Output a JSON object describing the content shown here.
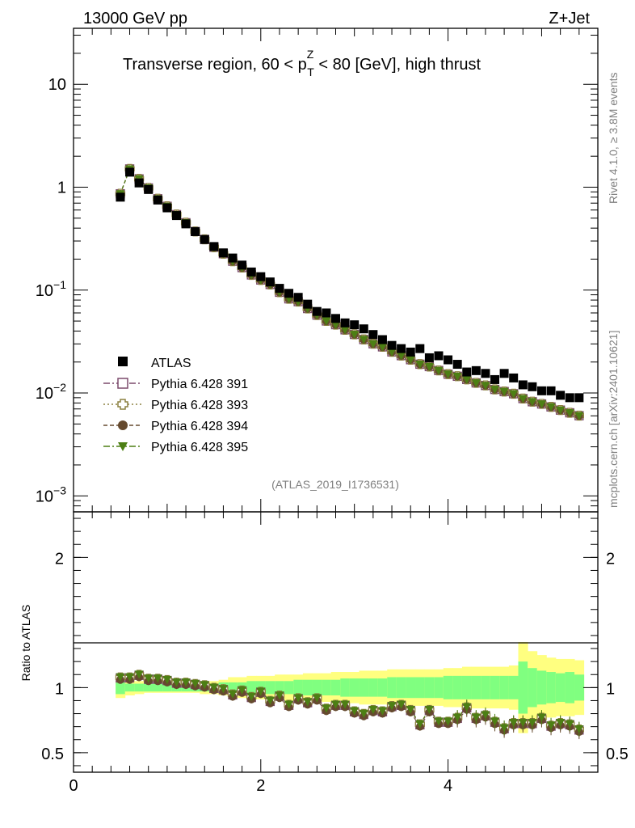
{
  "header": {
    "energy": "13000 GeV pp",
    "process": "Z+Jet",
    "title": "Transverse region, 60 < p",
    "title_sup": "Z",
    "title_sub": "T",
    "title_rest": " < 80 [GeV], high thrust",
    "watermark": "(ATLAS_2019_I1736531)",
    "rivet": "Rivet 4.1.0, ≥ 3.8M events",
    "source": "mcplots.cern.ch [arXiv:2401.10621]"
  },
  "legend": [
    {
      "label": "ATLAS",
      "style": "data"
    },
    {
      "label": "Pythia 6.428 391",
      "style": "open-square",
      "color": "#7b4a6b"
    },
    {
      "label": "Pythia 6.428 393",
      "style": "open-cross",
      "color": "#8c8040"
    },
    {
      "label": "Pythia 6.428 394",
      "style": "circle",
      "color": "#654a2e"
    },
    {
      "label": "Pythia 6.428 395",
      "style": "triangle",
      "color": "#4d7f14"
    }
  ],
  "chart_data": [
    {
      "type": "scatter",
      "panel": "main",
      "yscale": "log",
      "xlim": [
        0,
        5.6
      ],
      "ylim": [
        0.0007,
        35
      ],
      "y_ticks": [
        {
          "v": 0.001,
          "base": "10",
          "exp": "−3"
        },
        {
          "v": 0.01,
          "base": "10",
          "exp": "−2"
        },
        {
          "v": 0.1,
          "base": "10",
          "exp": "−1"
        },
        {
          "v": 1,
          "base": "1",
          "exp": ""
        },
        {
          "v": 10,
          "base": "10",
          "exp": ""
        }
      ],
      "x": [
        0.5,
        0.6,
        0.7,
        0.8,
        0.9,
        1.0,
        1.1,
        1.2,
        1.3,
        1.4,
        1.5,
        1.6,
        1.7,
        1.8,
        1.9,
        2.0,
        2.1,
        2.2,
        2.3,
        2.4,
        2.5,
        2.6,
        2.7,
        2.8,
        2.9,
        3.0,
        3.1,
        3.2,
        3.3,
        3.4,
        3.5,
        3.6,
        3.7,
        3.8,
        3.9,
        4.0,
        4.1,
        4.2,
        4.3,
        4.4,
        4.5,
        4.6,
        4.7,
        4.8,
        4.9,
        5.0,
        5.1,
        5.2,
        5.3,
        5.4
      ],
      "series": [
        {
          "name": "ATLAS",
          "values": [
            0.8,
            1.4,
            1.1,
            0.95,
            0.75,
            0.63,
            0.53,
            0.44,
            0.37,
            0.31,
            0.265,
            0.23,
            0.205,
            0.175,
            0.15,
            0.135,
            0.12,
            0.104,
            0.093,
            0.085,
            0.073,
            0.062,
            0.06,
            0.053,
            0.048,
            0.046,
            0.042,
            0.037,
            0.033,
            0.029,
            0.027,
            0.025,
            0.027,
            0.022,
            0.023,
            0.021,
            0.019,
            0.016,
            0.0165,
            0.0155,
            0.0135,
            0.0155,
            0.014,
            0.012,
            0.0115,
            0.0105,
            0.0105,
            0.0095,
            0.009,
            0.009
          ]
        },
        {
          "name": "Pythia 6.428 391",
          "values": [
            0.86,
            1.5,
            1.2,
            0.98,
            0.77,
            0.65,
            0.54,
            0.45,
            0.37,
            0.31,
            0.26,
            0.225,
            0.19,
            0.165,
            0.14,
            0.125,
            0.113,
            0.095,
            0.082,
            0.077,
            0.066,
            0.057,
            0.05,
            0.046,
            0.041,
            0.037,
            0.033,
            0.03,
            0.028,
            0.025,
            0.023,
            0.021,
            0.019,
            0.018,
            0.0165,
            0.0152,
            0.0145,
            0.0135,
            0.0125,
            0.0118,
            0.0108,
            0.0103,
            0.0098,
            0.0088,
            0.0082,
            0.0078,
            0.0073,
            0.0068,
            0.0064,
            0.006
          ]
        },
        {
          "name": "Pythia 6.428 393",
          "values": [
            0.86,
            1.5,
            1.2,
            0.98,
            0.77,
            0.65,
            0.54,
            0.45,
            0.37,
            0.31,
            0.26,
            0.225,
            0.19,
            0.165,
            0.14,
            0.125,
            0.113,
            0.095,
            0.082,
            0.077,
            0.066,
            0.057,
            0.05,
            0.046,
            0.041,
            0.037,
            0.033,
            0.03,
            0.028,
            0.025,
            0.023,
            0.021,
            0.019,
            0.018,
            0.0165,
            0.0152,
            0.0145,
            0.0135,
            0.0125,
            0.0118,
            0.0108,
            0.0103,
            0.0098,
            0.0088,
            0.0082,
            0.0078,
            0.0073,
            0.0068,
            0.0064,
            0.006
          ]
        },
        {
          "name": "Pythia 6.428 394",
          "values": [
            0.86,
            1.5,
            1.2,
            0.98,
            0.77,
            0.65,
            0.54,
            0.45,
            0.37,
            0.31,
            0.26,
            0.225,
            0.19,
            0.165,
            0.14,
            0.125,
            0.113,
            0.095,
            0.082,
            0.077,
            0.066,
            0.057,
            0.05,
            0.046,
            0.041,
            0.037,
            0.033,
            0.03,
            0.028,
            0.025,
            0.023,
            0.021,
            0.019,
            0.018,
            0.0165,
            0.0152,
            0.0145,
            0.0135,
            0.0125,
            0.0118,
            0.0108,
            0.0103,
            0.0098,
            0.0088,
            0.0082,
            0.0078,
            0.0073,
            0.0068,
            0.0064,
            0.006
          ]
        },
        {
          "name": "Pythia 6.428 395",
          "values": [
            0.86,
            1.5,
            1.2,
            0.98,
            0.77,
            0.65,
            0.54,
            0.45,
            0.37,
            0.31,
            0.26,
            0.225,
            0.19,
            0.165,
            0.14,
            0.125,
            0.113,
            0.095,
            0.082,
            0.077,
            0.066,
            0.057,
            0.05,
            0.046,
            0.041,
            0.037,
            0.033,
            0.03,
            0.028,
            0.025,
            0.023,
            0.021,
            0.019,
            0.018,
            0.0165,
            0.0152,
            0.0145,
            0.0135,
            0.0125,
            0.0118,
            0.0108,
            0.0103,
            0.0098,
            0.0088,
            0.0082,
            0.0078,
            0.0073,
            0.0068,
            0.0064,
            0.006
          ]
        }
      ]
    },
    {
      "type": "scatter",
      "panel": "ratio",
      "ylabel": "Ratio to ATLAS",
      "xlim": [
        0,
        5.6
      ],
      "ylim": [
        0.35,
        2.35
      ],
      "y_ticks": [
        {
          "v": 0.5,
          "label": "0.5"
        },
        {
          "v": 1,
          "label": "1"
        },
        {
          "v": 2,
          "label": "2"
        }
      ],
      "x_ticks": [
        {
          "v": 0,
          "label": "0"
        },
        {
          "v": 2,
          "label": "2"
        },
        {
          "v": 4,
          "label": "4"
        }
      ],
      "x": [
        0.5,
        0.6,
        0.7,
        0.8,
        0.9,
        1.0,
        1.1,
        1.2,
        1.3,
        1.4,
        1.5,
        1.6,
        1.7,
        1.8,
        1.9,
        2.0,
        2.1,
        2.2,
        2.3,
        2.4,
        2.5,
        2.6,
        2.7,
        2.8,
        2.9,
        3.0,
        3.1,
        3.2,
        3.3,
        3.4,
        3.5,
        3.6,
        3.7,
        3.8,
        3.9,
        4.0,
        4.1,
        4.2,
        4.3,
        4.4,
        4.5,
        4.6,
        4.7,
        4.8,
        4.9,
        5.0,
        5.1,
        5.2,
        5.3,
        5.4
      ],
      "band_stat": [
        0.05,
        0.03,
        0.03,
        0.03,
        0.03,
        0.03,
        0.03,
        0.03,
        0.03,
        0.03,
        0.03,
        0.04,
        0.04,
        0.04,
        0.05,
        0.05,
        0.05,
        0.05,
        0.05,
        0.06,
        0.06,
        0.06,
        0.06,
        0.06,
        0.07,
        0.07,
        0.07,
        0.07,
        0.07,
        0.08,
        0.08,
        0.08,
        0.08,
        0.08,
        0.08,
        0.09,
        0.09,
        0.09,
        0.09,
        0.09,
        0.09,
        0.09,
        0.09,
        0.2,
        0.15,
        0.13,
        0.12,
        0.11,
        0.12,
        0.1
      ],
      "band_total": [
        0.08,
        0.06,
        0.05,
        0.04,
        0.04,
        0.04,
        0.04,
        0.04,
        0.04,
        0.05,
        0.05,
        0.06,
        0.08,
        0.08,
        0.09,
        0.09,
        0.09,
        0.1,
        0.1,
        0.1,
        0.11,
        0.11,
        0.11,
        0.12,
        0.12,
        0.12,
        0.13,
        0.13,
        0.13,
        0.14,
        0.14,
        0.14,
        0.14,
        0.14,
        0.14,
        0.15,
        0.15,
        0.16,
        0.16,
        0.16,
        0.16,
        0.16,
        0.17,
        0.35,
        0.28,
        0.25,
        0.23,
        0.22,
        0.22,
        0.21
      ],
      "series": [
        {
          "name": "Pythia 6.428 391",
          "values": [
            1.07,
            1.07,
            1.09,
            1.06,
            1.06,
            1.05,
            1.03,
            1.03,
            1.02,
            1.01,
            0.99,
            0.98,
            0.94,
            0.97,
            0.92,
            0.96,
            0.89,
            0.93,
            0.86,
            0.91,
            0.88,
            0.91,
            0.83,
            0.86,
            0.86,
            0.81,
            0.79,
            0.82,
            0.81,
            0.85,
            0.86,
            0.82,
            0.71,
            0.82,
            0.73,
            0.73,
            0.76,
            0.84,
            0.76,
            0.78,
            0.73,
            0.68,
            0.72,
            0.72,
            0.72,
            0.76,
            0.7,
            0.72,
            0.71,
            0.67
          ]
        },
        {
          "name": "Pythia 6.428 393",
          "values": [
            1.07,
            1.07,
            1.09,
            1.06,
            1.06,
            1.05,
            1.03,
            1.03,
            1.02,
            1.01,
            0.99,
            0.98,
            0.94,
            0.97,
            0.92,
            0.96,
            0.89,
            0.93,
            0.86,
            0.91,
            0.88,
            0.91,
            0.83,
            0.86,
            0.86,
            0.81,
            0.79,
            0.82,
            0.81,
            0.85,
            0.86,
            0.82,
            0.71,
            0.82,
            0.73,
            0.73,
            0.76,
            0.84,
            0.76,
            0.78,
            0.73,
            0.68,
            0.72,
            0.72,
            0.72,
            0.76,
            0.7,
            0.72,
            0.71,
            0.67
          ]
        },
        {
          "name": "Pythia 6.428 394",
          "values": [
            1.07,
            1.07,
            1.09,
            1.06,
            1.06,
            1.05,
            1.03,
            1.03,
            1.02,
            1.01,
            0.99,
            0.98,
            0.94,
            0.97,
            0.92,
            0.96,
            0.89,
            0.93,
            0.86,
            0.91,
            0.88,
            0.91,
            0.83,
            0.86,
            0.86,
            0.81,
            0.79,
            0.82,
            0.81,
            0.85,
            0.86,
            0.82,
            0.71,
            0.82,
            0.73,
            0.73,
            0.76,
            0.84,
            0.76,
            0.78,
            0.73,
            0.68,
            0.72,
            0.72,
            0.72,
            0.76,
            0.7,
            0.72,
            0.71,
            0.67
          ]
        },
        {
          "name": "Pythia 6.428 395",
          "values": [
            1.07,
            1.07,
            1.09,
            1.06,
            1.06,
            1.05,
            1.03,
            1.03,
            1.02,
            1.01,
            0.99,
            0.98,
            0.94,
            0.97,
            0.92,
            0.96,
            0.89,
            0.93,
            0.86,
            0.91,
            0.88,
            0.91,
            0.83,
            0.86,
            0.86,
            0.81,
            0.79,
            0.82,
            0.81,
            0.85,
            0.86,
            0.82,
            0.71,
            0.82,
            0.73,
            0.73,
            0.76,
            0.84,
            0.76,
            0.78,
            0.73,
            0.68,
            0.72,
            0.72,
            0.72,
            0.76,
            0.7,
            0.72,
            0.71,
            0.67
          ]
        }
      ]
    }
  ]
}
